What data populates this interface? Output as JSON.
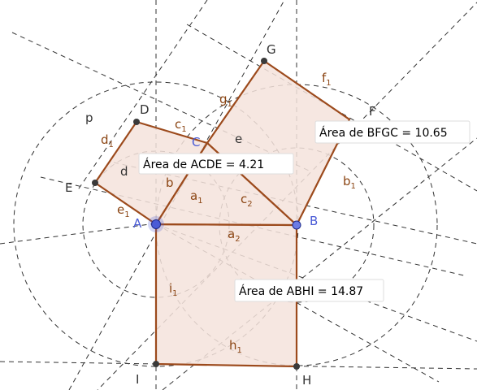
{
  "colors": {
    "polygon_fill": "#f5e3dc",
    "polygon_edge": "#9c4a1c",
    "dashed_line": "#333333",
    "point_dark": "#3a3a3a",
    "point_blue": "#4a5bd6"
  },
  "points": {
    "A": "A",
    "B": "B",
    "C": "C",
    "D": "D",
    "E": "E",
    "F": "F",
    "G": "G",
    "H": "H",
    "I": "I"
  },
  "labels": {
    "p": "p",
    "d": "d",
    "e": "e",
    "d1": "d",
    "d1_sub": "1",
    "c1": "c",
    "c1_sub": "1",
    "g1": "g",
    "g1_sub": "1",
    "f1": "f",
    "f1_sub": "1",
    "b": "b",
    "b1": "b",
    "b1_sub": "1",
    "a1": "a",
    "a1_sub": "1",
    "c2": "c",
    "c2_sub": "2",
    "a2": "a",
    "a2_sub": "2",
    "e1": "e",
    "e1_sub": "1",
    "i1": "i",
    "i1_sub": "1",
    "h1": "h",
    "h1_sub": "1"
  },
  "area_boxes": {
    "acde": "Área de  ACDE = 4.21",
    "bfgc": "Área de  BFGC = 10.65",
    "abhi": "Área de  ABHI = 14.87"
  }
}
